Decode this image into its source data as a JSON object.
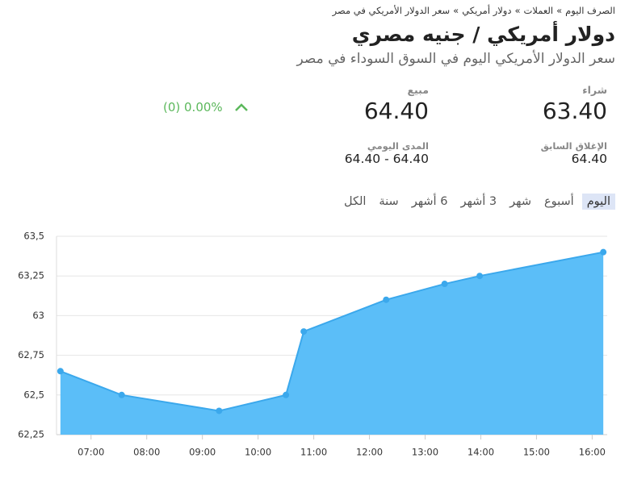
{
  "breadcrumb": {
    "items": [
      "الصرف اليوم",
      "العملات",
      "دولار أمريكي",
      "سعر الدولار الأمريكي في مصر"
    ],
    "separator": "»"
  },
  "header": {
    "title": "دولار أمريكي / جنيه مصري",
    "subtitle": "سعر الدولار الأمريكي اليوم في السوق السوداء في مصر"
  },
  "quote": {
    "buy": {
      "label": "شراء",
      "value": "63.40"
    },
    "sell": {
      "label": "مبيع",
      "value": "64.40"
    },
    "change": "(0) 0.00%",
    "previous_close": {
      "label": "الإغلاق السابق",
      "value": "64.40"
    },
    "daily_range": {
      "label": "المدى اليومي",
      "value": "64.40 - 64.40"
    }
  },
  "tabs": {
    "items": [
      "اليوم",
      "أسبوع",
      "شهر",
      "3 أشهر",
      "6 أشهر",
      "سنة",
      "الكل"
    ],
    "active": 0
  },
  "chart_data": {
    "type": "area",
    "x": [
      6.45,
      7.55,
      9.3,
      10.5,
      10.82,
      12.3,
      13.35,
      13.98,
      16.2
    ],
    "values": [
      62.65,
      62.5,
      62.4,
      62.5,
      62.9,
      63.1,
      63.2,
      63.25,
      63.4
    ],
    "color": "#5bbef8",
    "line_color": "#3ba8ec",
    "xlim": [
      6.38,
      16.27
    ],
    "xticks": [
      {
        "value": 7,
        "label": "07:00"
      },
      {
        "value": 8,
        "label": "08:00"
      },
      {
        "value": 9,
        "label": "09:00"
      },
      {
        "value": 10,
        "label": "10:00"
      },
      {
        "value": 11,
        "label": "11:00"
      },
      {
        "value": 12,
        "label": "12:00"
      },
      {
        "value": 13,
        "label": "13:00"
      },
      {
        "value": 14,
        "label": "14:00"
      },
      {
        "value": 15,
        "label": "15:00"
      },
      {
        "value": 16,
        "label": "16:00"
      }
    ],
    "ylim": [
      62.25,
      63.5
    ],
    "yticks": [
      {
        "value": 62.25,
        "label": "62,25"
      },
      {
        "value": 62.5,
        "label": "62,5"
      },
      {
        "value": 62.75,
        "label": "62,75"
      },
      63,
      {
        "value": 63.25,
        "label": "63,25"
      },
      {
        "value": 63.5,
        "label": "63,5"
      }
    ],
    "grid": true
  }
}
